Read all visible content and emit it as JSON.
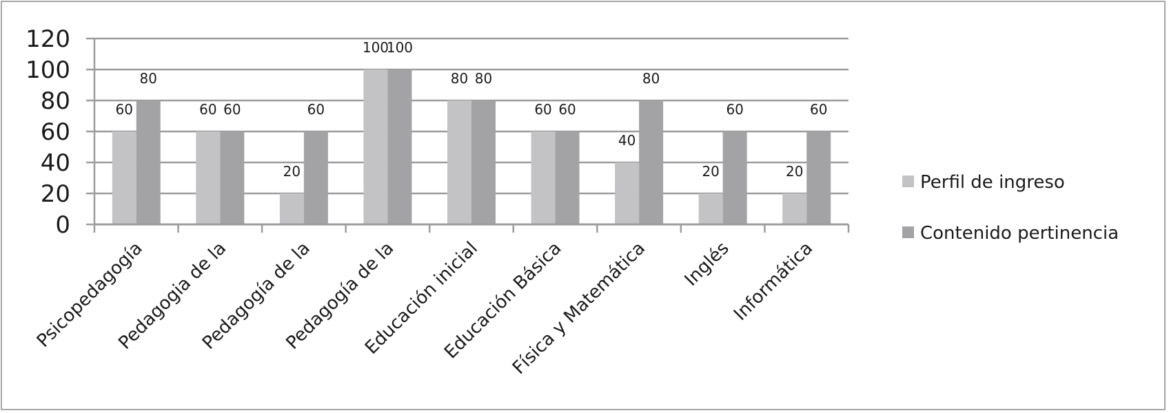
{
  "chart_data": {
    "type": "bar",
    "title": "",
    "xlabel": "",
    "ylabel": "",
    "ylim": [
      0,
      120
    ],
    "yticks": [
      0,
      20,
      40,
      60,
      80,
      100,
      120
    ],
    "grid": true,
    "legend_position": "right",
    "categories": [
      "Psicopedagogía",
      "Pedagogia de la",
      "Pedagogía de la",
      "Pedagogía de la",
      "Educación inicial",
      "Educación Básica",
      "Física y Matemática",
      "Inglés",
      "Informática"
    ],
    "series": [
      {
        "name": "Perfil de ingreso",
        "color": "#c3c3c5",
        "values": [
          60,
          60,
          20,
          100,
          80,
          60,
          40,
          20,
          20
        ]
      },
      {
        "name": "Contenido pertinencia",
        "color": "#a3a3a6",
        "values": [
          80,
          60,
          60,
          100,
          80,
          60,
          80,
          60,
          60
        ]
      }
    ]
  }
}
